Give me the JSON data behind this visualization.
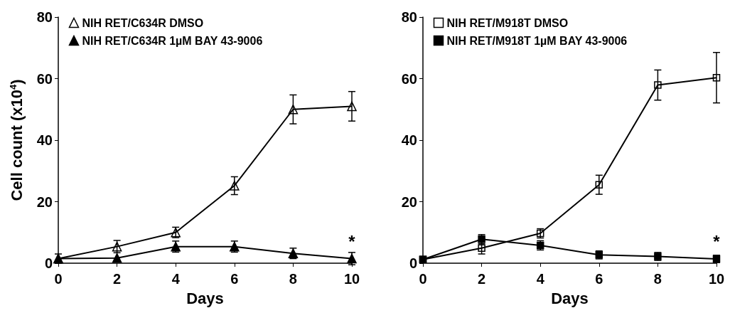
{
  "chart_data": [
    {
      "type": "line",
      "xlabel": "Days",
      "ylabel": "Cell count (x10$^{4}$)",
      "x": [
        0,
        2,
        4,
        6,
        8,
        10
      ],
      "xlim": [
        0,
        10
      ],
      "xticks": [
        0,
        2,
        4,
        6,
        8,
        10
      ],
      "ylim": [
        0,
        80
      ],
      "yticks": [
        0,
        20,
        40,
        60,
        80
      ],
      "grid": false,
      "legend": "top left",
      "marker": "triangle",
      "line_style": "solid",
      "series": [
        {
          "name": "NIH RET/C634R DMSO",
          "color": "#000000",
          "values": [
            1.5,
            5.4,
            10,
            25.2,
            50,
            51
          ],
          "errors": [
            1.5,
            2,
            1.7,
            2.9,
            4.7,
            4.8
          ]
        },
        {
          "name": "NIH RET/C634R 1µM BAY 43-9006",
          "color": "#000000",
          "values": [
            1.5,
            1.7,
            5.4,
            5.4,
            3.2,
            1.5
          ],
          "errors": [
            null,
            null,
            1.8,
            1.8,
            1.7,
            2
          ]
        }
      ],
      "annotations": [
        "*"
      ]
    },
    {
      "type": "line",
      "xlabel": "Days",
      "x": [
        0,
        2,
        4,
        6,
        8,
        10
      ],
      "xlim": [
        0,
        10
      ],
      "xticks": [
        0,
        2,
        4,
        6,
        8,
        10
      ],
      "ylim": [
        0,
        80
      ],
      "yticks": [
        0,
        20,
        40,
        60,
        80
      ],
      "grid": false,
      "legend": "top left",
      "marker": "square",
      "line_style": "solid",
      "series": [
        {
          "name": "NIH RET/M918T DMSO",
          "color": "#000000",
          "values": [
            1.2,
            4.9,
            9.7,
            25.5,
            57.9,
            60.3
          ],
          "errors": [
            null,
            1.9,
            1.5,
            3.1,
            4.9,
            8.2
          ]
        },
        {
          "name": "NIH RET/M918T 1µM BAY 43-9006",
          "color": "#000000",
          "values": [
            1.2,
            7.8,
            5.8,
            2.7,
            2.2,
            1.4
          ],
          "errors": [
            null,
            1.5,
            1.5,
            1.3,
            1.3,
            1.2
          ]
        }
      ],
      "annotations": [
        "*"
      ]
    }
  ]
}
